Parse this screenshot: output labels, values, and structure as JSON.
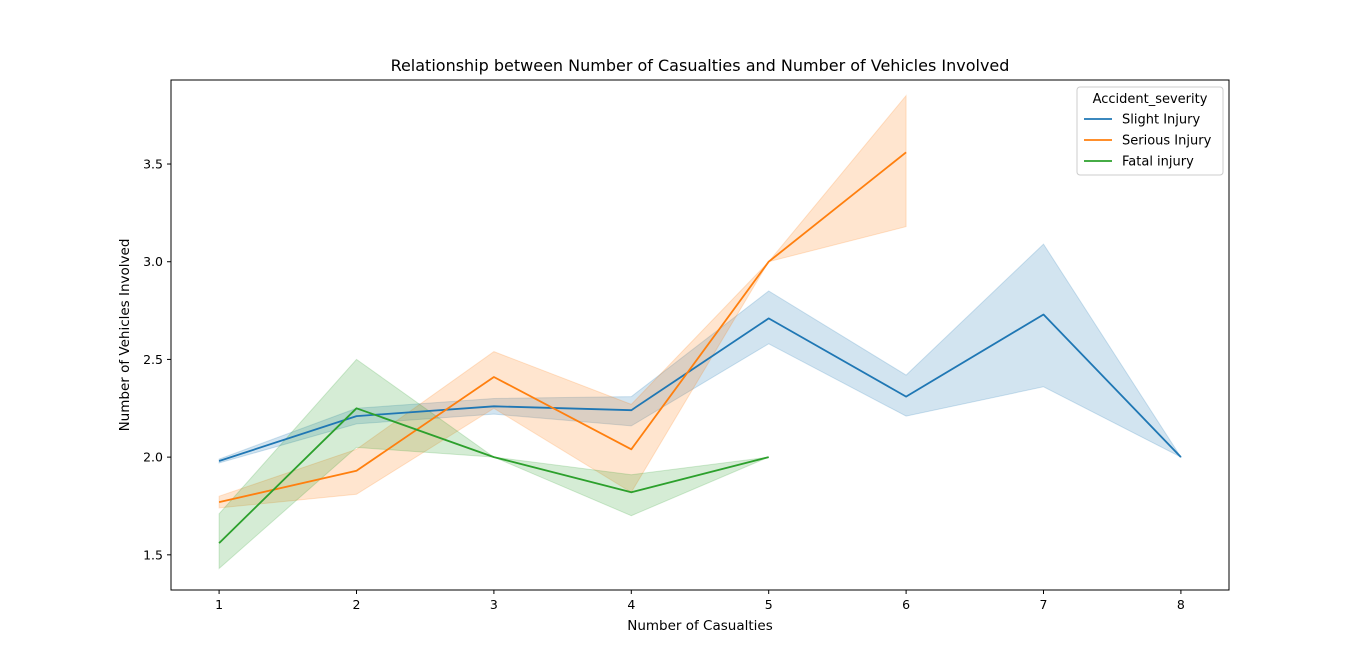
{
  "chart_data": {
    "type": "line",
    "title": "Relationship between Number of Casualties and Number of Vehicles Involved",
    "xlabel": "Number of Casualties",
    "ylabel": "Number of Vehicles Involved",
    "xlim": [
      0.65,
      8.35
    ],
    "ylim": [
      1.32,
      3.93
    ],
    "xticks": [
      1,
      2,
      3,
      4,
      5,
      6,
      7,
      8
    ],
    "yticks": [
      1.5,
      2.0,
      2.5,
      3.0,
      3.5
    ],
    "ytick_labels": [
      "1.5",
      "2.0",
      "2.5",
      "3.0",
      "3.5"
    ],
    "grid": false,
    "legend": {
      "title": "Accident_severity",
      "placement": "top-right"
    },
    "series": [
      {
        "name": "Slight Injury",
        "color": "#1f77b4",
        "x": [
          1,
          2,
          3,
          4,
          5,
          6,
          7,
          8
        ],
        "y": [
          1.98,
          2.21,
          2.26,
          2.24,
          2.71,
          2.31,
          2.73,
          2.0
        ],
        "ci_low": [
          1.97,
          2.17,
          2.22,
          2.16,
          2.58,
          2.21,
          2.36,
          2.0
        ],
        "ci_high": [
          1.99,
          2.25,
          2.3,
          2.31,
          2.85,
          2.42,
          3.09,
          2.0
        ]
      },
      {
        "name": "Serious Injury",
        "color": "#ff7f0e",
        "x": [
          1,
          2,
          3,
          4,
          5,
          6
        ],
        "y": [
          1.77,
          1.93,
          2.41,
          2.04,
          3.0,
          3.56
        ],
        "ci_low": [
          1.74,
          1.81,
          2.25,
          1.82,
          3.0,
          3.18
        ],
        "ci_high": [
          1.8,
          2.04,
          2.54,
          2.27,
          3.0,
          3.85
        ]
      },
      {
        "name": "Fatal injury",
        "color": "#2ca02c",
        "x": [
          1,
          2,
          3,
          4,
          5
        ],
        "y": [
          1.56,
          2.25,
          2.0,
          1.82,
          2.0
        ],
        "ci_low": [
          1.43,
          2.05,
          2.0,
          1.7,
          2.0
        ],
        "ci_high": [
          1.71,
          2.5,
          2.0,
          1.91,
          2.0
        ]
      }
    ]
  }
}
